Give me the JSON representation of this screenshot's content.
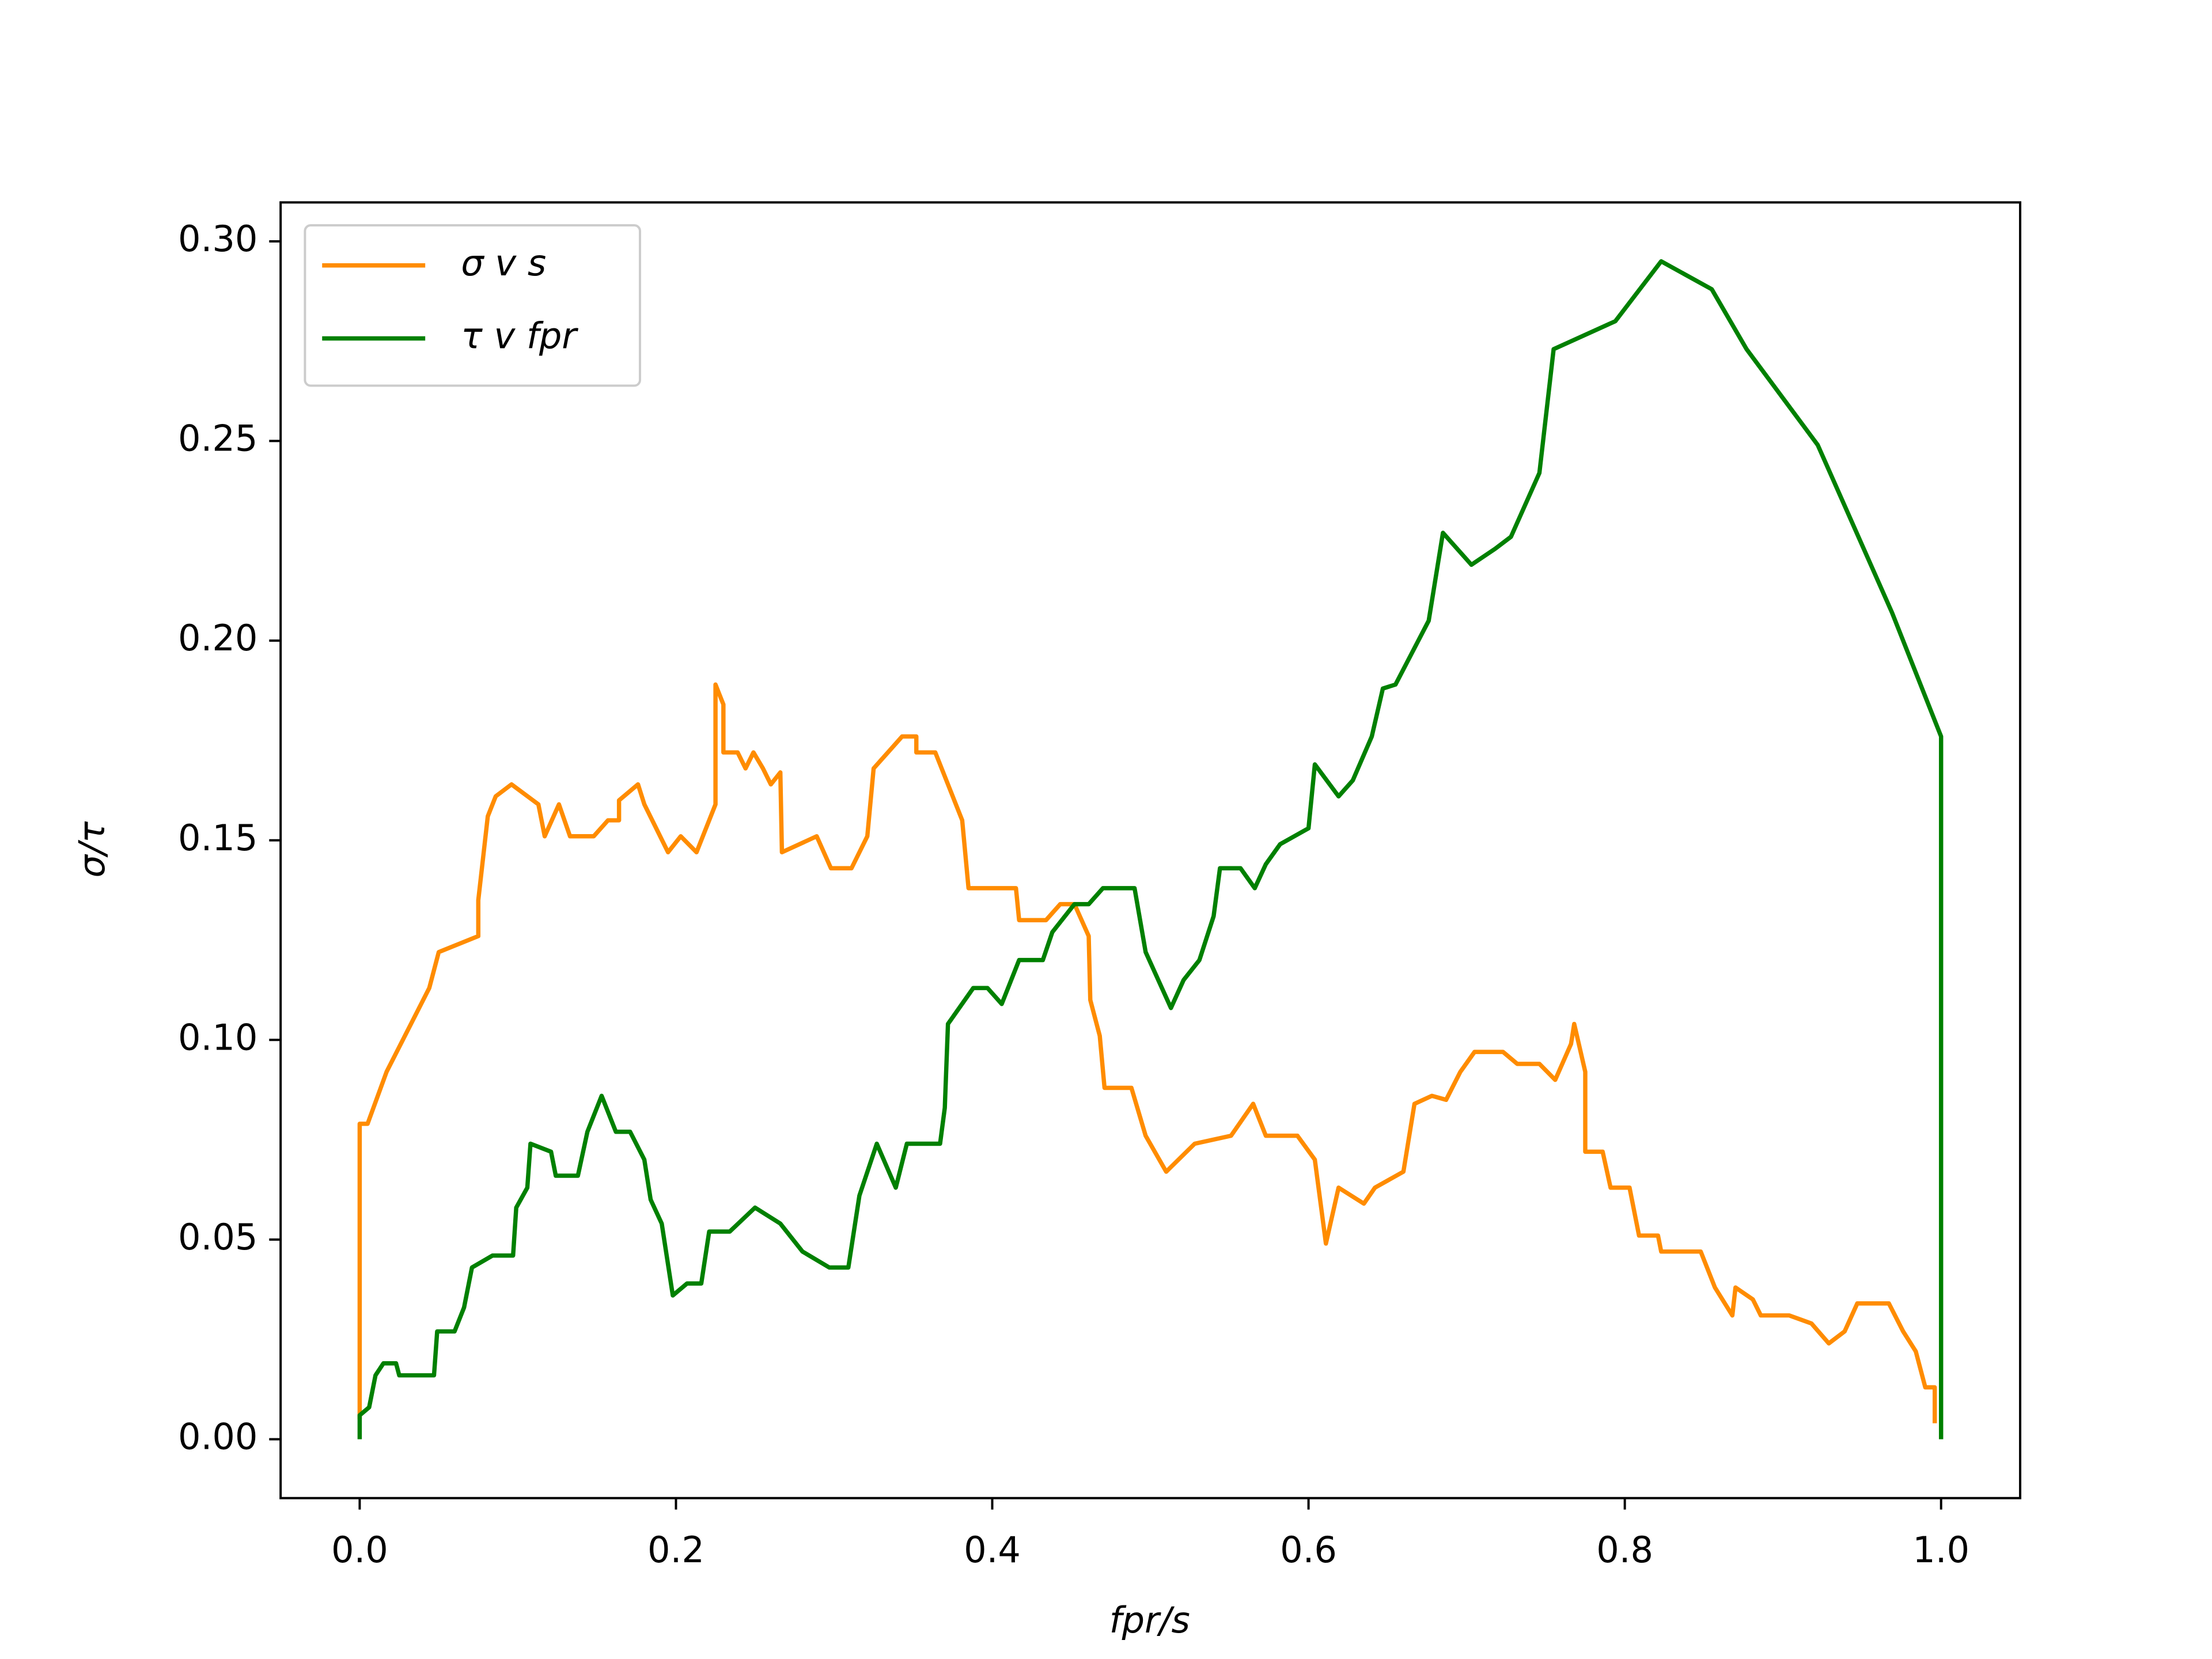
{
  "chart_data": {
    "type": "line",
    "xlabel": "fpr/s",
    "ylabel": "σ/τ",
    "xlim": [
      -0.05,
      1.05
    ],
    "ylim": [
      -0.01475,
      0.30975
    ],
    "xticks": [
      {
        "value": 0,
        "label": "0.0"
      },
      0.2,
      0.4,
      0.6,
      0.8,
      {
        "value": 1,
        "label": "1.0"
      }
    ],
    "yticks": [
      {
        "value": 0,
        "label": "0.00"
      },
      {
        "value": 0.05,
        "label": "0.05"
      },
      {
        "value": 0.1,
        "label": "0.10"
      },
      {
        "value": 0.15,
        "label": "0.15"
      },
      {
        "value": 0.2,
        "label": "0.20"
      },
      {
        "value": 0.25,
        "label": "0.25"
      },
      {
        "value": 0.3,
        "label": "0.30"
      }
    ],
    "legend": "upper left",
    "series": [
      {
        "name": "σ v s",
        "color": "#ff8c00",
        "x": [
          0,
          0,
          0.005,
          0.017,
          0.044,
          0.05,
          0.075,
          0.075,
          0.081,
          0.086,
          0.096,
          0.113,
          0.117,
          0.126,
          0.133,
          0.148,
          0.157,
          0.164,
          0.164,
          0.176,
          0.18,
          0.195,
          0.203,
          0.213,
          0.225,
          0.225,
          0.23,
          0.23,
          0.239,
          0.244,
          0.249,
          0.255,
          0.26,
          0.266,
          0.267,
          0.289,
          0.298,
          0.311,
          0.321,
          0.325,
          0.334,
          0.343,
          0.352,
          0.352,
          0.364,
          0.381,
          0.385,
          0.415,
          0.417,
          0.434,
          0.443,
          0.452,
          0.461,
          0.462,
          0.468,
          0.471,
          0.488,
          0.497,
          0.51,
          0.528,
          0.551,
          0.565,
          0.573,
          0.593,
          0.604,
          0.611,
          0.619,
          0.635,
          0.642,
          0.66,
          0.667,
          0.678,
          0.687,
          0.696,
          0.705,
          0.723,
          0.732,
          0.746,
          0.756,
          0.766,
          0.768,
          0.775,
          0.775,
          0.786,
          0.791,
          0.803,
          0.809,
          0.821,
          0.823,
          0.848,
          0.857,
          0.868,
          0.87,
          0.881,
          0.886,
          0.904,
          0.918,
          0.929,
          0.939,
          0.947,
          0.967,
          0.976,
          0.984,
          0.99,
          0.996,
          0.996
        ],
        "values": [
          0.005,
          0.079,
          0.079,
          0.092,
          0.113,
          0.122,
          0.126,
          0.135,
          0.156,
          0.161,
          0.164,
          0.159,
          0.151,
          0.159,
          0.151,
          0.151,
          0.155,
          0.155,
          0.16,
          0.164,
          0.159,
          0.147,
          0.151,
          0.147,
          0.159,
          0.189,
          0.184,
          0.172,
          0.172,
          0.168,
          0.172,
          0.168,
          0.164,
          0.167,
          0.147,
          0.151,
          0.143,
          0.143,
          0.151,
          0.168,
          0.172,
          0.176,
          0.176,
          0.172,
          0.172,
          0.155,
          0.138,
          0.138,
          0.13,
          0.13,
          0.134,
          0.134,
          0.126,
          0.11,
          0.101,
          0.088,
          0.088,
          0.076,
          0.067,
          0.074,
          0.076,
          0.084,
          0.076,
          0.076,
          0.07,
          0.049,
          0.063,
          0.059,
          0.063,
          0.067,
          0.084,
          0.086,
          0.085,
          0.092,
          0.097,
          0.097,
          0.094,
          0.094,
          0.09,
          0.099,
          0.104,
          0.092,
          0.072,
          0.072,
          0.063,
          0.063,
          0.051,
          0.051,
          0.047,
          0.047,
          0.038,
          0.031,
          0.038,
          0.035,
          0.031,
          0.031,
          0.029,
          0.024,
          0.027,
          0.034,
          0.034,
          0.027,
          0.022,
          0.013,
          0.013,
          0.004
        ]
      },
      {
        "name": "τ v fpr",
        "color": "#008000",
        "x": [
          0,
          0,
          0.006,
          0.01,
          0.015,
          0.023,
          0.025,
          0.047,
          0.049,
          0.06,
          0.066,
          0.071,
          0.084,
          0.097,
          0.099,
          0.106,
          0.108,
          0.121,
          0.124,
          0.138,
          0.144,
          0.153,
          0.162,
          0.171,
          0.18,
          0.184,
          0.191,
          0.198,
          0.207,
          0.216,
          0.221,
          0.234,
          0.25,
          0.266,
          0.28,
          0.297,
          0.309,
          0.316,
          0.327,
          0.339,
          0.346,
          0.367,
          0.37,
          0.372,
          0.388,
          0.397,
          0.406,
          0.417,
          0.432,
          0.438,
          0.452,
          0.461,
          0.47,
          0.49,
          0.497,
          0.513,
          0.521,
          0.531,
          0.54,
          0.544,
          0.557,
          0.566,
          0.573,
          0.582,
          0.6,
          0.604,
          0.619,
          0.628,
          0.64,
          0.647,
          0.655,
          0.676,
          0.685,
          0.703,
          0.718,
          0.728,
          0.746,
          0.755,
          0.794,
          0.823,
          0.855,
          0.877,
          0.922,
          0.969,
          1,
          1
        ],
        "values": [
          0,
          0.006,
          0.008,
          0.016,
          0.019,
          0.019,
          0.016,
          0.016,
          0.027,
          0.027,
          0.033,
          0.043,
          0.046,
          0.046,
          0.058,
          0.063,
          0.074,
          0.072,
          0.066,
          0.066,
          0.077,
          0.086,
          0.077,
          0.077,
          0.07,
          0.06,
          0.054,
          0.036,
          0.039,
          0.039,
          0.052,
          0.052,
          0.058,
          0.054,
          0.047,
          0.043,
          0.043,
          0.061,
          0.074,
          0.063,
          0.074,
          0.074,
          0.083,
          0.104,
          0.113,
          0.113,
          0.109,
          0.12,
          0.12,
          0.127,
          0.134,
          0.134,
          0.138,
          0.138,
          0.122,
          0.108,
          0.115,
          0.12,
          0.131,
          0.143,
          0.143,
          0.138,
          0.144,
          0.149,
          0.153,
          0.169,
          0.161,
          0.165,
          0.176,
          0.188,
          0.189,
          0.205,
          0.227,
          0.219,
          0.223,
          0.226,
          0.242,
          0.273,
          0.28,
          0.295,
          0.288,
          0.273,
          0.249,
          0.207,
          0.176,
          0
        ]
      }
    ]
  }
}
